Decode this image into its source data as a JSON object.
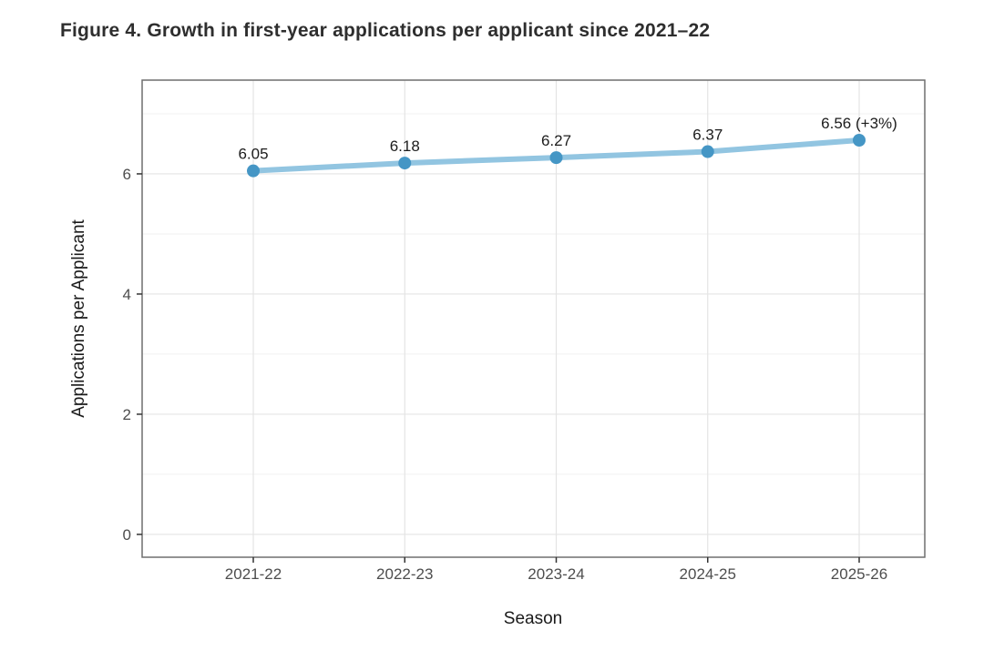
{
  "figure": {
    "title": "Figure 4. Growth in first-year applications per applicant since 2021–22"
  },
  "chart_data": {
    "type": "line",
    "title": "Figure 4. Growth in first-year applications per applicant since 2021–22",
    "categories": [
      "2021-22",
      "2022-23",
      "2023-24",
      "2024-25",
      "2025-26"
    ],
    "series": [
      {
        "name": "Applications per Applicant",
        "values": [
          6.05,
          6.18,
          6.27,
          6.37,
          6.56
        ]
      }
    ],
    "point_labels": [
      "6.05",
      "6.18",
      "6.27",
      "6.37",
      "6.56 (+3%)"
    ],
    "xlabel": "Season",
    "ylabel": "Applications per Applicant",
    "y_ticks_major": [
      0,
      2,
      4,
      6
    ],
    "y_ticks_minor": [
      1,
      3,
      5,
      7
    ],
    "ylim": [
      -0.38,
      7.56
    ],
    "grid": "on",
    "legend": "none",
    "colors": {
      "line": "#92c5e1",
      "point": "#4596c5",
      "grid_major": "#e4e4e4",
      "grid_minor": "#f1f1f1",
      "panel_border": "#6f6f6f",
      "panel_bg": "#ffffff",
      "tick_mark": "#333333",
      "tick_label": "#4d4d4d",
      "axis_title": "#1a1a1a",
      "data_label": "#1c1c1c",
      "title": "#2e2e2e"
    }
  }
}
